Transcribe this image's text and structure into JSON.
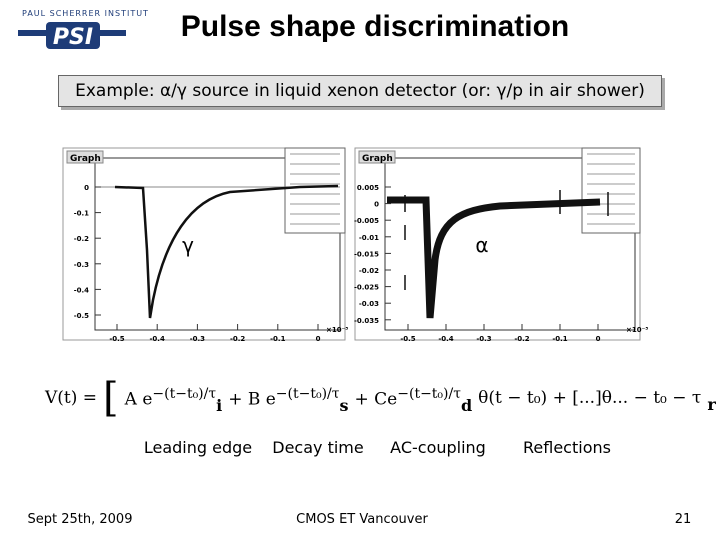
{
  "logo": {
    "institute": "PAUL SCHERRER INSTITUT",
    "acronym": "PSI"
  },
  "title": "Pulse shape discrimination",
  "subtitle": "Example: α/γ source in liquid xenon detector (or: γ/p in air shower)",
  "plots": [
    {
      "heading": "Graph",
      "label": "γ",
      "yticks": [
        "0",
        "-0.1",
        "-0.2",
        "-0.3",
        "-0.4",
        "-0.5"
      ],
      "xticks": [
        "-0.5",
        "-0.4",
        "-0.3",
        "-0.2",
        "-0.1",
        "0"
      ],
      "x_multiplier": "×10⁻³"
    },
    {
      "heading": "Graph",
      "label": "α",
      "yticks": [
        "0.005",
        "0",
        "-0.005",
        "-0.01",
        "-0.015",
        "-0.02",
        "-0.025",
        "-0.03",
        "-0.035"
      ],
      "xticks": [
        "-0.5",
        "-0.4",
        "-0.3",
        "-0.2",
        "-0.1",
        "0"
      ],
      "x_multiplier": "×10⁻³"
    }
  ],
  "formula": {
    "lhs": "V(t) =",
    "open": "[",
    "terms": [
      {
        "coef": "A e",
        "exponent": "−(t−t₀)/τ",
        "sub": "i"
      },
      {
        "coef": "+ B e",
        "exponent": "−(t−t₀)/τ",
        "sub": "s"
      },
      {
        "coef": "+ Ce",
        "exponent": "−(t−t₀)/τ",
        "sub": "d"
      }
    ],
    "tail": "θ(t − t₀) + [...]θ... − t₀ − τ",
    "tail_sub": "r",
    "close": ")"
  },
  "labels": [
    "Leading edge",
    "Decay time",
    "AC-coupling",
    "Reflections"
  ],
  "footer": {
    "date": "Sept 25th, 2009",
    "event": "CMOS ET Vancouver",
    "page": "21"
  }
}
